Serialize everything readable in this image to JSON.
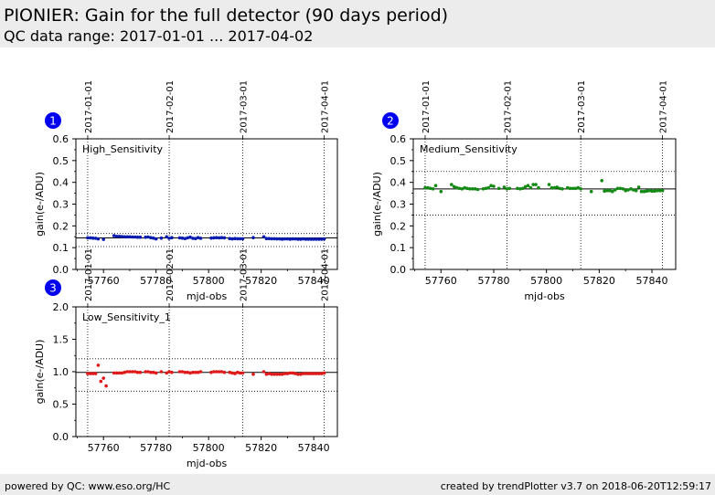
{
  "header": {
    "title": "PIONIER: Gain for the full detector (90 days period)",
    "subtitle": "QC data range: 2017-01-01 ... 2017-04-02"
  },
  "footer": {
    "left": "powered by QC: www.eso.org/HC",
    "right": "created by trendPlotter v3.7 on 2018-06-20T12:59:17"
  },
  "colors": {
    "badge": "#0000ee",
    "high": "#0a1cb0",
    "medium": "#138a13",
    "low": "#e01818"
  },
  "chart_data": [
    {
      "type": "scatter",
      "badge": "1",
      "panel_label": "High_Sensitivity",
      "xlabel": "mjd-obs",
      "ylabel": "gain(e-/ADU)",
      "xlim": [
        57749.5,
        57849
      ],
      "ylim": [
        0,
        0.6
      ],
      "xticks": [
        57760,
        57780,
        57800,
        57820,
        57840
      ],
      "yticks": [
        "0.0",
        "0.1",
        "0.2",
        "0.3",
        "0.4",
        "0.5",
        "0.6"
      ],
      "date_ticks": [
        {
          "label": "2017-01-01",
          "mjd": 57754
        },
        {
          "label": "2017-02-01",
          "mjd": 57785
        },
        {
          "label": "2017-03-01",
          "mjd": 57813
        },
        {
          "label": "2017-04-01",
          "mjd": 57844
        }
      ],
      "mean_line": 0.145,
      "limit_lines": [
        0.165,
        0.105
      ],
      "color": "#0a1cb0",
      "x": [
        57754,
        57755,
        57756,
        57757,
        57758,
        57760,
        57764,
        57765,
        57766,
        57767,
        57768,
        57769,
        57770,
        57771,
        57772,
        57773,
        57774,
        57776,
        57777,
        57778,
        57779,
        57780,
        57782,
        57784,
        57785,
        57786,
        57789,
        57790,
        57791,
        57792,
        57793,
        57794,
        57795,
        57796,
        57797,
        57801,
        57802,
        57803,
        57804,
        57805,
        57806,
        57808,
        57809,
        57810,
        57811,
        57812,
        57813,
        57817,
        57821,
        57822,
        57823,
        57824,
        57825,
        57826,
        57827,
        57828,
        57829,
        57830,
        57831,
        57832,
        57833,
        57834,
        57835,
        57836,
        57837,
        57838,
        57839,
        57840,
        57841,
        57842,
        57843,
        57844
      ],
      "y": [
        0.145,
        0.145,
        0.144,
        0.143,
        0.14,
        0.138,
        0.155,
        0.152,
        0.152,
        0.151,
        0.15,
        0.15,
        0.15,
        0.149,
        0.149,
        0.148,
        0.148,
        0.148,
        0.149,
        0.146,
        0.144,
        0.14,
        0.144,
        0.15,
        0.143,
        0.146,
        0.145,
        0.144,
        0.142,
        0.145,
        0.148,
        0.143,
        0.142,
        0.146,
        0.143,
        0.144,
        0.145,
        0.146,
        0.145,
        0.146,
        0.145,
        0.142,
        0.14,
        0.142,
        0.141,
        0.141,
        0.141,
        0.146,
        0.15,
        0.142,
        0.142,
        0.141,
        0.141,
        0.14,
        0.14,
        0.139,
        0.14,
        0.14,
        0.139,
        0.14,
        0.14,
        0.139,
        0.139,
        0.14,
        0.139,
        0.139,
        0.139,
        0.139,
        0.139,
        0.139,
        0.139,
        0.14
      ]
    },
    {
      "type": "scatter",
      "badge": "2",
      "panel_label": "Medium_Sensitivity",
      "xlabel": "mjd-obs",
      "ylabel": "gain(e-/ADU)",
      "xlim": [
        57749.5,
        57849
      ],
      "ylim": [
        0,
        0.6
      ],
      "xticks": [
        57760,
        57780,
        57800,
        57820,
        57840
      ],
      "yticks": [
        "0.0",
        "0.1",
        "0.2",
        "0.3",
        "0.4",
        "0.5",
        "0.6"
      ],
      "date_ticks": [
        {
          "label": "2017-01-01",
          "mjd": 57754
        },
        {
          "label": "2017-02-01",
          "mjd": 57785
        },
        {
          "label": "2017-03-01",
          "mjd": 57813
        },
        {
          "label": "2017-04-01",
          "mjd": 57844
        }
      ],
      "mean_line": 0.37,
      "limit_lines": [
        0.45,
        0.25
      ],
      "color": "#138a13",
      "x": [
        57754,
        57755,
        57756,
        57757,
        57758,
        57760,
        57764,
        57765,
        57766,
        57767,
        57768,
        57769,
        57770,
        57771,
        57772,
        57773,
        57774,
        57776,
        57777,
        57778,
        57779,
        57780,
        57782,
        57784,
        57785,
        57786,
        57789,
        57790,
        57791,
        57792,
        57793,
        57794,
        57795,
        57796,
        57797,
        57801,
        57802,
        57803,
        57804,
        57805,
        57806,
        57808,
        57809,
        57810,
        57811,
        57812,
        57813,
        57817,
        57821,
        57822,
        57823,
        57824,
        57825,
        57826,
        57827,
        57828,
        57829,
        57830,
        57831,
        57832,
        57833,
        57834,
        57835,
        57836,
        57837,
        57838,
        57839,
        57840,
        57841,
        57842,
        57843,
        57844
      ],
      "y": [
        0.375,
        0.375,
        0.372,
        0.37,
        0.385,
        0.358,
        0.39,
        0.38,
        0.375,
        0.372,
        0.37,
        0.375,
        0.372,
        0.37,
        0.37,
        0.37,
        0.367,
        0.37,
        0.372,
        0.375,
        0.385,
        0.382,
        0.372,
        0.378,
        0.37,
        0.372,
        0.372,
        0.37,
        0.372,
        0.38,
        0.385,
        0.375,
        0.39,
        0.39,
        0.375,
        0.39,
        0.375,
        0.375,
        0.378,
        0.372,
        0.37,
        0.375,
        0.372,
        0.372,
        0.372,
        0.375,
        0.37,
        0.358,
        0.408,
        0.36,
        0.362,
        0.362,
        0.358,
        0.365,
        0.372,
        0.372,
        0.37,
        0.362,
        0.365,
        0.37,
        0.365,
        0.362,
        0.378,
        0.358,
        0.358,
        0.36,
        0.362,
        0.36,
        0.36,
        0.362,
        0.362,
        0.362
      ]
    },
    {
      "type": "scatter",
      "badge": "3",
      "panel_label": "Low_Sensitivity_1",
      "xlabel": "mjd-obs",
      "ylabel": "gain(e-/ADU)",
      "xlim": [
        57749.5,
        57849
      ],
      "ylim": [
        0,
        2.0
      ],
      "xticks": [
        57760,
        57780,
        57800,
        57820,
        57840
      ],
      "yticks": [
        "0.0",
        "0.5",
        "1.0",
        "1.5",
        "2.0"
      ],
      "date_ticks": [
        {
          "label": "2017-01-01",
          "mjd": 57754
        },
        {
          "label": "2017-02-01",
          "mjd": 57785
        },
        {
          "label": "2017-03-01",
          "mjd": 57813
        },
        {
          "label": "2017-04-01",
          "mjd": 57844
        }
      ],
      "mean_line": 0.99,
      "limit_lines": [
        1.2,
        0.7
      ],
      "color": "#e01818",
      "x": [
        57754,
        57755,
        57756,
        57757,
        57758,
        57759,
        57760,
        57761,
        57764,
        57765,
        57766,
        57767,
        57768,
        57769,
        57770,
        57771,
        57772,
        57773,
        57774,
        57776,
        57777,
        57778,
        57779,
        57780,
        57782,
        57784,
        57785,
        57786,
        57789,
        57790,
        57791,
        57792,
        57793,
        57794,
        57795,
        57796,
        57797,
        57801,
        57802,
        57803,
        57804,
        57805,
        57806,
        57808,
        57809,
        57810,
        57811,
        57812,
        57813,
        57817,
        57821,
        57822,
        57823,
        57824,
        57825,
        57826,
        57827,
        57828,
        57829,
        57830,
        57831,
        57832,
        57833,
        57834,
        57835,
        57836,
        57837,
        57838,
        57839,
        57840,
        57841,
        57842,
        57843,
        57844
      ],
      "y": [
        0.97,
        0.97,
        0.97,
        0.97,
        1.1,
        0.85,
        0.9,
        0.78,
        0.98,
        0.98,
        0.98,
        0.98,
        0.99,
        1.0,
        1.0,
        1.0,
        1.0,
        0.99,
        0.99,
        1.0,
        1.0,
        0.99,
        0.99,
        0.98,
        1.0,
        0.98,
        1.0,
        0.99,
        1.0,
        1.0,
        0.99,
        0.99,
        0.98,
        0.99,
        0.99,
        0.99,
        1.0,
        0.99,
        1.0,
        1.0,
        1.0,
        1.0,
        0.99,
        0.99,
        0.98,
        0.97,
        0.99,
        0.98,
        0.98,
        0.96,
        1.0,
        0.96,
        0.97,
        0.96,
        0.96,
        0.96,
        0.96,
        0.96,
        0.97,
        0.97,
        0.98,
        0.98,
        0.97,
        0.96,
        0.96,
        0.97,
        0.97,
        0.97,
        0.97,
        0.97,
        0.97,
        0.97,
        0.97,
        0.98
      ]
    }
  ]
}
